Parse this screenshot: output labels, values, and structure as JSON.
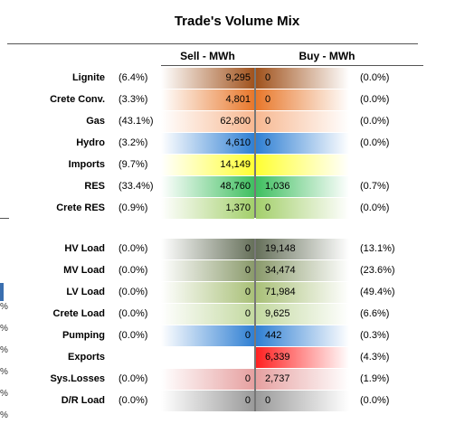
{
  "title": "Trade's Volume Mix",
  "headers": {
    "sell": "Sell - MWh",
    "buy": "Buy - MWh"
  },
  "colors": {
    "Lignite": "#a0521c",
    "Crete Conv.": "#e8772a",
    "Gas": "#f7b891",
    "Hydro": "#2f7fd3",
    "Imports": "#ffff33",
    "RES": "#3fbf60",
    "Crete RES": "#a3cf6b",
    "HV Load": "#66705a",
    "MV Load": "#8a9a6b",
    "LV Load": "#a9c078",
    "Crete Load": "#c3d9a0",
    "Pumping": "#2f7fd3",
    "Exports": "#ff2020",
    "Sys.Losses": "#e6a0a0",
    "D/R Load": "#9a9a9a"
  },
  "chart_data": {
    "type": "table",
    "title": "Trade's Volume Mix",
    "columns": [
      "Sell - MWh",
      "Buy - MWh"
    ],
    "rows": [
      {
        "label": "Lignite",
        "sell_pct": "(6.4%)",
        "sell": "9,295",
        "buy": "0",
        "buy_pct": "(0.0%)",
        "sell_v": 9295,
        "buy_v": 0
      },
      {
        "label": "Crete Conv.",
        "sell_pct": "(3.3%)",
        "sell": "4,801",
        "buy": "0",
        "buy_pct": "(0.0%)",
        "sell_v": 4801,
        "buy_v": 0
      },
      {
        "label": "Gas",
        "sell_pct": "(43.1%)",
        "sell": "62,800",
        "buy": "0",
        "buy_pct": "(0.0%)",
        "sell_v": 62800,
        "buy_v": 0
      },
      {
        "label": "Hydro",
        "sell_pct": "(3.2%)",
        "sell": "4,610",
        "buy": "0",
        "buy_pct": "(0.0%)",
        "sell_v": 4610,
        "buy_v": 0
      },
      {
        "label": "Imports",
        "sell_pct": "(9.7%)",
        "sell": "14,149",
        "buy": "",
        "buy_pct": "",
        "sell_v": 14149,
        "buy_v": null
      },
      {
        "label": "RES",
        "sell_pct": "(33.4%)",
        "sell": "48,760",
        "buy": "1,036",
        "buy_pct": "(0.7%)",
        "sell_v": 48760,
        "buy_v": 1036
      },
      {
        "label": "Crete RES",
        "sell_pct": "(0.9%)",
        "sell": "1,370",
        "buy": "0",
        "buy_pct": "(0.0%)",
        "sell_v": 1370,
        "buy_v": 0
      },
      {
        "label": "HV Load",
        "sell_pct": "(0.0%)",
        "sell": "0",
        "buy": "19,148",
        "buy_pct": "(13.1%)",
        "sell_v": 0,
        "buy_v": 19148
      },
      {
        "label": "MV Load",
        "sell_pct": "(0.0%)",
        "sell": "0",
        "buy": "34,474",
        "buy_pct": "(23.6%)",
        "sell_v": 0,
        "buy_v": 34474
      },
      {
        "label": "LV Load",
        "sell_pct": "(0.0%)",
        "sell": "0",
        "buy": "71,984",
        "buy_pct": "(49.4%)",
        "sell_v": 0,
        "buy_v": 71984
      },
      {
        "label": "Crete Load",
        "sell_pct": "(0.0%)",
        "sell": "0",
        "buy": "9,625",
        "buy_pct": "(6.6%)",
        "sell_v": 0,
        "buy_v": 9625
      },
      {
        "label": "Pumping",
        "sell_pct": "(0.0%)",
        "sell": "0",
        "buy": "442",
        "buy_pct": "(0.3%)",
        "sell_v": 0,
        "buy_v": 442
      },
      {
        "label": "Exports",
        "sell_pct": "",
        "sell": "",
        "buy": "6,339",
        "buy_pct": "(4.3%)",
        "sell_v": null,
        "buy_v": 6339
      },
      {
        "label": "Sys.Losses",
        "sell_pct": "(0.0%)",
        "sell": "0",
        "buy": "2,737",
        "buy_pct": "(1.9%)",
        "sell_v": 0,
        "buy_v": 2737
      },
      {
        "label": "D/R Load",
        "sell_pct": "(0.0%)",
        "sell": "0",
        "buy": "0",
        "buy_pct": "(0.0%)",
        "sell_v": 0,
        "buy_v": 0
      }
    ]
  },
  "edge_marks": [
    "%",
    "%",
    "%",
    "%",
    "%",
    "%"
  ]
}
